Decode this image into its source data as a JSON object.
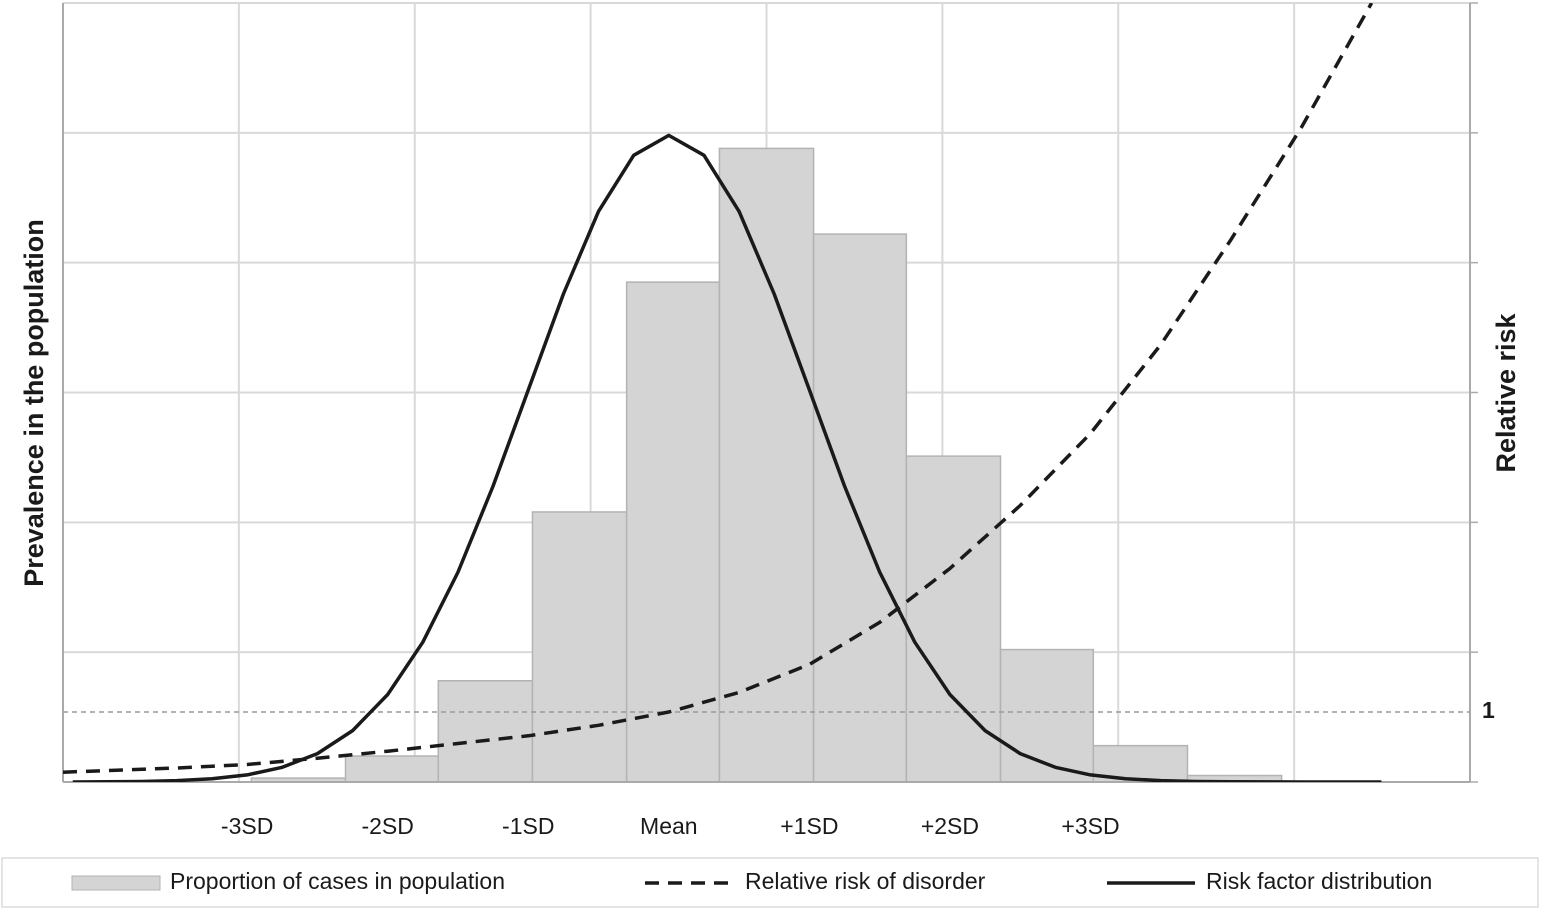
{
  "chart_data": {
    "type": "histogram",
    "ylabel": "Prevalence in the population",
    "y2label": "Relative risk",
    "xlim": [
      -4.31,
      5.7
    ],
    "xticks": [
      {
        "value": -3,
        "label": "-3SD"
      },
      {
        "value": -2,
        "label": "-2SD"
      },
      {
        "value": -1,
        "label": "-1SD"
      },
      {
        "value": 0,
        "label": "Mean"
      },
      {
        "value": 1,
        "label": "+1SD"
      },
      {
        "value": 2,
        "label": "+2SD"
      },
      {
        "value": 3,
        "label": "+3SD"
      }
    ],
    "ylim": [
      0,
      6
    ],
    "y2lim": [
      0,
      11.13
    ],
    "y2ticks": [
      1
    ],
    "grid": true,
    "legend": "bottom",
    "histogram": {
      "name": "Proportion of cases in population",
      "color": "#d4d4d4",
      "bins": [
        -2.97,
        -2.3,
        -1.64,
        -0.97,
        -0.3,
        0.36,
        1.03,
        1.69,
        2.36,
        3.02,
        3.69,
        4.36
      ],
      "values": [
        0.03,
        0.2,
        0.78,
        2.08,
        3.85,
        4.88,
        4.22,
        2.51,
        1.02,
        0.28,
        0.05
      ]
    },
    "series": [
      {
        "name": "Relative risk of disorder",
        "color": "#1a1a1a",
        "dash": true,
        "axis": "y2",
        "x": [
          -4.31,
          -3.5,
          -3,
          -2.5,
          -2,
          -1.5,
          -1,
          -0.5,
          0,
          0.5,
          1,
          1.5,
          2,
          2.5,
          3,
          3.5,
          4,
          4.5,
          5
        ],
        "values": [
          0.14,
          0.2,
          0.25,
          0.34,
          0.44,
          0.55,
          0.66,
          0.81,
          1.0,
          1.28,
          1.68,
          2.28,
          3.05,
          3.95,
          4.98,
          6.25,
          7.75,
          9.35,
          11.13
        ]
      },
      {
        "name": "Risk factor distribution",
        "color": "#1a1a1a",
        "dash": false,
        "axis": "y",
        "x": [
          -4.24,
          -4,
          -3.75,
          -3.5,
          -3.25,
          -3,
          -2.75,
          -2.5,
          -2.25,
          -2,
          -1.75,
          -1.5,
          -1.25,
          -1,
          -0.75,
          -0.5,
          -0.25,
          0,
          0.25,
          0.5,
          0.75,
          1,
          1.25,
          1.5,
          1.75,
          2,
          2.25,
          2.5,
          2.75,
          3,
          3.25,
          3.5,
          3.75,
          4,
          4.5,
          5.07
        ],
        "values": [
          0,
          0.002,
          0.004,
          0.011,
          0.025,
          0.055,
          0.113,
          0.219,
          0.396,
          0.674,
          1.077,
          1.617,
          2.28,
          3.02,
          3.759,
          4.395,
          4.827,
          4.98,
          4.827,
          4.395,
          3.759,
          3.02,
          2.28,
          1.617,
          1.077,
          0.674,
          0.396,
          0.219,
          0.113,
          0.055,
          0.025,
          0.011,
          0.004,
          0.002,
          0,
          0
        ]
      }
    ]
  }
}
